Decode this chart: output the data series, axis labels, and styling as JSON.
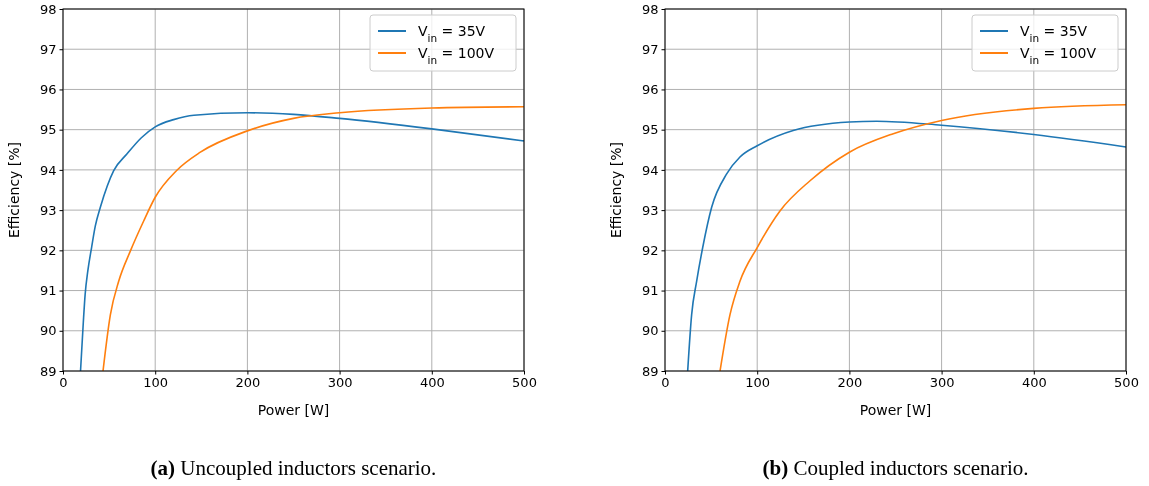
{
  "chart_data": [
    {
      "type": "line",
      "xlabel": "Power [W]",
      "ylabel": "Efficiency [%]",
      "xlim": [
        0,
        500
      ],
      "ylim": [
        89,
        98
      ],
      "xticks": [
        0,
        100,
        200,
        300,
        400,
        500
      ],
      "yticks": [
        89,
        90,
        91,
        92,
        93,
        94,
        95,
        96,
        97,
        98
      ],
      "grid": true,
      "legend": "top right",
      "annotations": [
        "(a) Uncoupled inductors scenario."
      ],
      "series": [
        {
          "name": "V$_{in}$ = 35V",
          "color": "#1f77b4",
          "x": [
            19,
            22,
            24,
            27,
            31,
            35,
            40.5,
            48,
            55,
            69.5,
            85,
            100,
            120,
            142,
            200,
            250,
            300,
            400,
            500
          ],
          "values": [
            89.0,
            90.2,
            90.9,
            91.5,
            92.07,
            92.6,
            93.07,
            93.6,
            93.98,
            94.4,
            94.8,
            95.07,
            95.25,
            95.36,
            95.42,
            95.38,
            95.28,
            95.02,
            94.72
          ]
        },
        {
          "name": "V$_{in}$ = 100V",
          "color": "#ff7f0e",
          "x": [
            43.4,
            51.4,
            60.4,
            73,
            87.5,
            100,
            123,
            149,
            200,
            250,
            300,
            400,
            500
          ],
          "values": [
            89.0,
            90.4,
            91.23,
            91.98,
            92.73,
            93.32,
            93.98,
            94.44,
            94.97,
            95.28,
            95.42,
            95.54,
            95.57
          ]
        }
      ]
    },
    {
      "type": "line",
      "xlabel": "Power [W]",
      "ylabel": "Efficiency [%]",
      "xlim": [
        0,
        500
      ],
      "ylim": [
        89,
        98
      ],
      "xticks": [
        0,
        100,
        200,
        300,
        400,
        500
      ],
      "yticks": [
        89,
        90,
        91,
        92,
        93,
        94,
        95,
        96,
        97,
        98
      ],
      "grid": true,
      "legend": "top right",
      "annotations": [
        "(b) Coupled inductors scenario."
      ],
      "series": [
        {
          "name": "V$_{in}$ = 35V",
          "color": "#1f77b4",
          "x": [
            24.6,
            28.9,
            34.3,
            40.9,
            50.6,
            66.9,
            81.3,
            100,
            139,
            200,
            229.6,
            300,
            400,
            500
          ],
          "values": [
            89.0,
            90.4,
            91.23,
            92.07,
            93.07,
            93.9,
            94.32,
            94.6,
            94.98,
            95.19,
            95.21,
            95.11,
            94.88,
            94.57
          ]
        },
        {
          "name": "V$_{in}$ = 100V",
          "color": "#ff7f0e",
          "x": [
            59.7,
            70.5,
            81.3,
            100,
            124.7,
            157.3,
            200,
            247.6,
            300,
            400,
            500
          ],
          "values": [
            89.0,
            90.4,
            91.23,
            92.07,
            92.98,
            93.73,
            94.44,
            94.9,
            95.23,
            95.53,
            95.62
          ]
        }
      ]
    }
  ]
}
